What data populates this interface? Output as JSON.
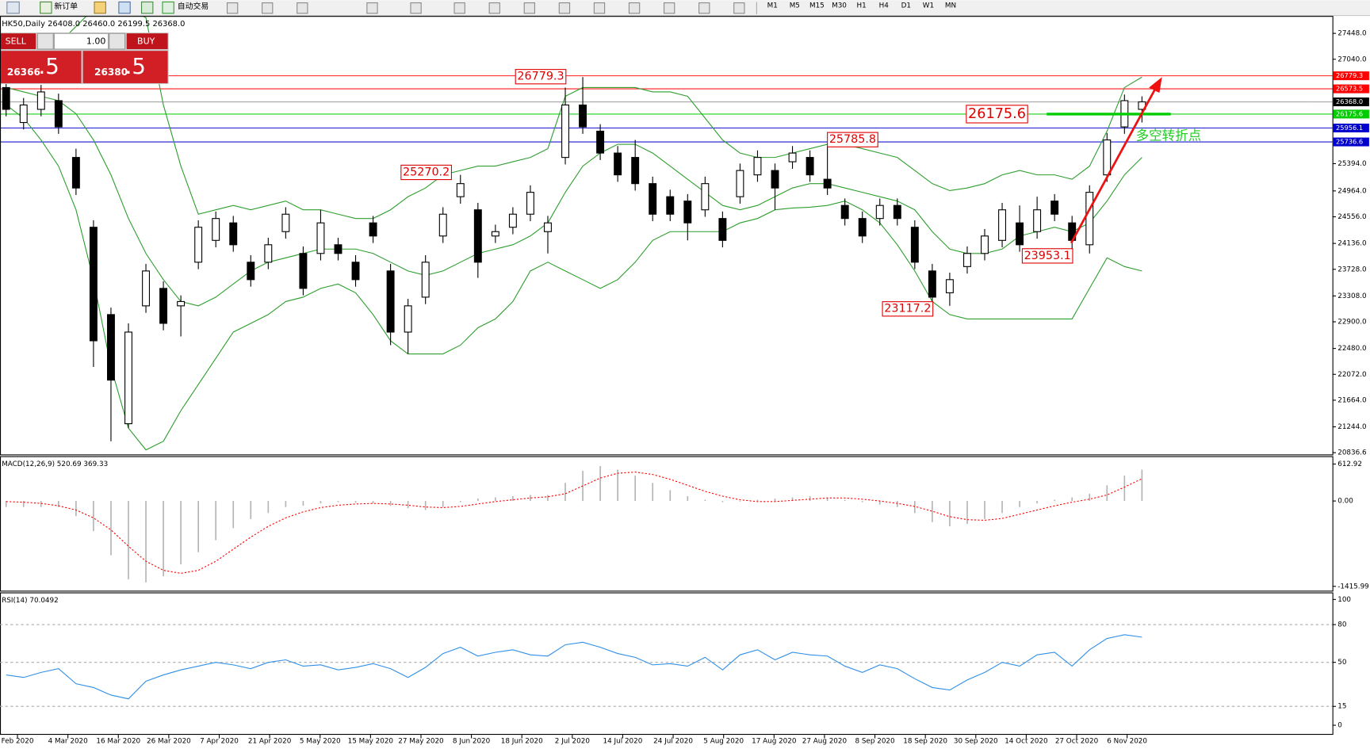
{
  "toolbar": {
    "new_order": "新订单",
    "auto_trading": "自动交易",
    "timeframes": [
      "M1",
      "M5",
      "M15",
      "M30",
      "H1",
      "H4",
      "D1",
      "W1",
      "MN"
    ]
  },
  "header": "HK50,Daily 26408.0 26460.0 26199.5 26368.0",
  "trade_panel": {
    "sell": "SELL",
    "buy": "BUY",
    "lots": "1.00",
    "sell_price": "26366",
    "sell_pips": ".5",
    "buy_price": "26380",
    "buy_pips": ".5"
  },
  "chart_data": [
    {
      "type": "candlestick",
      "up_color": "#ffffff",
      "down_color": "#000000",
      "candles": [
        [
          26594,
          26704,
          26140,
          26250
        ],
        [
          26043,
          26429,
          25933,
          26319
        ],
        [
          26250,
          26635,
          26140,
          26525
        ],
        [
          26387,
          26498,
          25864,
          25974
        ],
        [
          25492,
          25630,
          24900,
          25010
        ],
        [
          24391,
          24501,
          22188,
          22601
        ],
        [
          23014,
          23124,
          21017,
          21981
        ],
        [
          21293,
          22876,
          21224,
          22738
        ],
        [
          23152,
          23813,
          23041,
          23702
        ],
        [
          23427,
          23537,
          22766,
          22876
        ],
        [
          23152,
          23317,
          22669,
          23220
        ],
        [
          23840,
          24501,
          23730,
          24391
        ],
        [
          24184,
          24639,
          24074,
          24529
        ],
        [
          24460,
          24570,
          24005,
          24115
        ],
        [
          23840,
          23950,
          23454,
          23565
        ],
        [
          23840,
          24226,
          23730,
          24115
        ],
        [
          24322,
          24707,
          24212,
          24597
        ],
        [
          23978,
          24088,
          23317,
          23427
        ],
        [
          23978,
          24666,
          23868,
          24460
        ],
        [
          24115,
          24226,
          23868,
          23978
        ],
        [
          23840,
          23950,
          23454,
          23565
        ],
        [
          24460,
          24570,
          24143,
          24253
        ],
        [
          23702,
          23813,
          22532,
          22738
        ],
        [
          22738,
          23262,
          22394,
          23152
        ],
        [
          23289,
          23950,
          23179,
          23840
        ],
        [
          24253,
          24707,
          24143,
          24597
        ],
        [
          24873,
          25217,
          24763,
          25079
        ],
        [
          24666,
          24776,
          23592,
          23840
        ],
        [
          24253,
          24432,
          24143,
          24322
        ],
        [
          24391,
          24707,
          24281,
          24597
        ],
        [
          24597,
          25052,
          24487,
          24942
        ],
        [
          24322,
          24570,
          23978,
          24460
        ],
        [
          25492,
          26594,
          25382,
          26319
        ],
        [
          26319,
          26759,
          25864,
          25974
        ],
        [
          25906,
          26016,
          25451,
          25561
        ],
        [
          25561,
          25671,
          25107,
          25217
        ],
        [
          25492,
          25768,
          24969,
          25079
        ],
        [
          25079,
          25189,
          24487,
          24597
        ],
        [
          24873,
          24983,
          24487,
          24597
        ],
        [
          24804,
          24914,
          24184,
          24460
        ],
        [
          24666,
          25189,
          24556,
          25079
        ],
        [
          24529,
          24639,
          24074,
          24184
        ],
        [
          24873,
          25396,
          24763,
          25286
        ],
        [
          25217,
          25603,
          25107,
          25492
        ],
        [
          25286,
          25396,
          24666,
          25010
        ],
        [
          25424,
          25671,
          25313,
          25561
        ],
        [
          25492,
          25603,
          25107,
          25217
        ],
        [
          25148,
          25699,
          24900,
          25010
        ],
        [
          24735,
          24845,
          24418,
          24529
        ],
        [
          24529,
          24639,
          24143,
          24253
        ],
        [
          24529,
          24845,
          24418,
          24735
        ],
        [
          24735,
          24845,
          24418,
          24529
        ],
        [
          24391,
          24501,
          23730,
          23840
        ],
        [
          23702,
          23813,
          23083,
          23289
        ],
        [
          23358,
          23675,
          23152,
          23565
        ],
        [
          23771,
          24088,
          23661,
          23978
        ],
        [
          23978,
          24363,
          23868,
          24253
        ],
        [
          24184,
          24776,
          24074,
          24666
        ],
        [
          24460,
          24735,
          24005,
          24115
        ],
        [
          24322,
          24873,
          24212,
          24666
        ],
        [
          24804,
          24914,
          24487,
          24597
        ],
        [
          24460,
          24570,
          23978,
          24184
        ],
        [
          24115,
          25052,
          23978,
          24942
        ],
        [
          25217,
          25878,
          25107,
          25768
        ],
        [
          25974,
          26484,
          25864,
          26387
        ],
        [
          26250,
          26456,
          26043,
          26368
        ]
      ],
      "bands": {
        "color": "#2e9e2e",
        "upper": [
          26869,
          27007,
          27145,
          27283,
          27558,
          27833,
          27971,
          27833,
          27696,
          26319,
          25355,
          24597,
          24666,
          24735,
          24666,
          24735,
          24804,
          24666,
          24666,
          24597,
          24529,
          24529,
          24666,
          24873,
          25010,
          25217,
          25286,
          25355,
          25355,
          25424,
          25492,
          25630,
          26456,
          26594,
          26594,
          26594,
          26594,
          26525,
          26525,
          26456,
          26112,
          25768,
          25561,
          25492,
          25492,
          25561,
          25630,
          25699,
          25699,
          25630,
          25561,
          25492,
          25286,
          25079,
          24969,
          25010,
          25079,
          25217,
          25286,
          25217,
          25217,
          25148,
          25355,
          25906,
          26594,
          26759
        ],
        "middle": [
          26594,
          26525,
          26456,
          26387,
          26181,
          25768,
          25217,
          24529,
          23978,
          23565,
          23220,
          23152,
          23289,
          23496,
          23702,
          23840,
          23909,
          23978,
          24047,
          24047,
          24047,
          23978,
          23840,
          23702,
          23633,
          23702,
          23840,
          23978,
          24047,
          24115,
          24253,
          24460,
          24942,
          25355,
          25561,
          25699,
          25699,
          25561,
          25355,
          25148,
          24942,
          24735,
          24666,
          24735,
          24873,
          25010,
          25079,
          25079,
          25010,
          24942,
          24873,
          24804,
          24666,
          24322,
          24047,
          23978,
          23978,
          24047,
          24253,
          24322,
          24391,
          24322,
          24460,
          24804,
          25217,
          25492
        ],
        "lower": [
          26319,
          26112,
          25768,
          25355,
          24666,
          23565,
          22188,
          21224,
          20880,
          21017,
          21499,
          21912,
          22325,
          22738,
          22876,
          23014,
          23220,
          23289,
          23427,
          23496,
          23358,
          23014,
          22601,
          22394,
          22394,
          22394,
          22532,
          22807,
          22945,
          23220,
          23702,
          23840,
          23702,
          23565,
          23427,
          23565,
          23840,
          24184,
          24322,
          24322,
          24322,
          24322,
          24460,
          24529,
          24666,
          24694,
          24707,
          24735,
          24804,
          24666,
          24460,
          24115,
          23702,
          23220,
          23014,
          22945,
          22945,
          22945,
          22945,
          22945,
          22945,
          22945,
          23427,
          23909,
          23771,
          23702
        ]
      },
      "ylim": [
        20809,
        27723
      ],
      "yticks": [
        {
          "value": 27448,
          "label": "27448.0"
        },
        {
          "value": 27040,
          "label": "27040.0"
        },
        {
          "value": 25394,
          "label": "25394.0"
        },
        {
          "value": 24964,
          "label": "24964.0"
        },
        {
          "value": 24556,
          "label": "24556.0"
        },
        {
          "value": 24136,
          "label": "24136.0"
        },
        {
          "value": 23728,
          "label": "23728.0"
        },
        {
          "value": 23308,
          "label": "23308.0"
        },
        {
          "value": 22900,
          "label": "22900.0"
        },
        {
          "value": 22480,
          "label": "22480.0"
        },
        {
          "value": 22072,
          "label": "22072.0"
        },
        {
          "value": 21664,
          "label": "21664.0"
        },
        {
          "value": 21244,
          "label": "21244.0"
        },
        20836.6
      ],
      "levels": [
        {
          "value": 26779.3,
          "color": "#ff0000"
        },
        {
          "value": 26573.5,
          "color": "#ff0000"
        },
        {
          "value": 26368,
          "label": "26368.0",
          "color": "#000000"
        },
        {
          "value": 26175.6,
          "color": "#00cc00"
        },
        {
          "value": 25956.1,
          "color": "#0000cc"
        },
        {
          "value": 25736.6,
          "color": "#0000cc"
        }
      ],
      "annotations": [
        {
          "value": 26779.3
        },
        {
          "value": 25785.8
        },
        {
          "value": 25270.2
        },
        {
          "value": 23953.1
        },
        {
          "value": 23117.2
        },
        {
          "value": 26175.6
        }
      ],
      "signal_note": "多空转折点",
      "x_labels": [
        "Feb 2020",
        "4 Mar 2020",
        "16 Mar 2020",
        "26 Mar 2020",
        "7 Apr 2020",
        "21 Apr 2020",
        "5 May 2020",
        "15 May 2020",
        "27 May 2020",
        "8 Jun 2020",
        "18 Jun 2020",
        "2 Jul 2020",
        "14 Jul 2020",
        "24 Jul 2020",
        "5 Aug 2020",
        "17 Aug 2020",
        "27 Aug 2020",
        "8 Sep 2020",
        "18 Sep 2020",
        "30 Sep 2020",
        "14 Oct 2020",
        "27 Oct 2020",
        "6 Nov 2020"
      ]
    },
    {
      "type": "macd",
      "title": "MACD(12,26,9) 520.69 369.33",
      "histogram_color": "#b4b4b4",
      "signal_color": "#ff0000",
      "histogram": [
        -100,
        -100,
        -100,
        -100,
        -250,
        -500,
        -900,
        -1300,
        -1350,
        -1250,
        -1050,
        -850,
        -650,
        -450,
        -300,
        -200,
        -100,
        -80,
        -40,
        -20,
        -30,
        -40,
        -80,
        -120,
        -150,
        -100,
        -20,
        40,
        60,
        80,
        100,
        100,
        300,
        500,
        580,
        520,
        420,
        300,
        180,
        80,
        20,
        -20,
        -10,
        20,
        40,
        60,
        80,
        60,
        20,
        -20,
        -60,
        -100,
        -200,
        -350,
        -420,
        -380,
        -300,
        -200,
        -100,
        -40,
        20,
        60,
        120,
        260,
        420,
        520.69
      ],
      "signal": [
        -10,
        -20,
        -40,
        -80,
        -150,
        -280,
        -480,
        -750,
        -1000,
        -1150,
        -1200,
        -1150,
        -1000,
        -800,
        -600,
        -420,
        -280,
        -180,
        -110,
        -70,
        -50,
        -40,
        -50,
        -70,
        -100,
        -110,
        -90,
        -50,
        -10,
        20,
        50,
        70,
        120,
        250,
        380,
        460,
        480,
        440,
        360,
        260,
        160,
        80,
        20,
        -10,
        -10,
        10,
        30,
        50,
        50,
        30,
        0,
        -40,
        -90,
        -170,
        -260,
        -310,
        -320,
        -290,
        -220,
        -150,
        -80,
        -20,
        30,
        100,
        230,
        369.33
      ],
      "ylim": [
        -1488,
        729
      ],
      "yticks": [
        612.92,
        {
          "value": 0,
          "label": "0.00"
        },
        -1415.99
      ]
    },
    {
      "type": "rsi",
      "title": "RSI(14) 70.0492",
      "color": "#2f8fe8",
      "values": [
        40,
        38,
        42,
        45,
        33,
        30,
        24,
        21,
        35,
        40,
        44,
        47,
        50,
        48,
        45,
        50,
        52,
        47,
        48,
        44,
        46,
        49,
        45,
        38,
        46,
        57,
        62,
        55,
        58,
        60,
        56,
        55,
        64,
        66,
        62,
        57,
        54,
        48,
        49,
        47,
        54,
        44,
        56,
        60,
        52,
        58,
        56,
        55,
        47,
        42,
        48,
        45,
        37,
        30,
        28,
        36,
        42,
        50,
        47,
        56,
        58,
        47,
        60,
        69,
        72,
        70.0492
      ],
      "ylim": [
        -6.9,
        104.9
      ],
      "yticks": [
        100,
        80,
        50,
        15,
        0
      ]
    }
  ]
}
